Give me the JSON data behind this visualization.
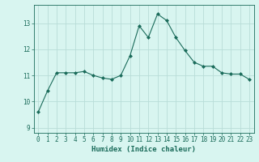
{
  "x": [
    0,
    1,
    2,
    3,
    4,
    5,
    6,
    7,
    8,
    9,
    10,
    11,
    12,
    13,
    14,
    15,
    16,
    17,
    18,
    19,
    20,
    21,
    22,
    23
  ],
  "y": [
    9.6,
    10.4,
    11.1,
    11.1,
    11.1,
    11.15,
    11.0,
    10.9,
    10.85,
    11.0,
    11.75,
    12.9,
    12.45,
    13.35,
    13.1,
    12.45,
    11.95,
    11.5,
    11.35,
    11.35,
    11.1,
    11.05,
    11.05,
    10.85
  ],
  "line_color": "#1a6b5a",
  "marker": "D",
  "marker_size": 2.0,
  "bg_color": "#d8f5f0",
  "grid_color": "#b8ddd8",
  "xlabel": "Humidex (Indice chaleur)",
  "ylabel_ticks": [
    "9",
    "10",
    "11",
    "12",
    "13"
  ],
  "ylim": [
    8.8,
    13.7
  ],
  "xlim": [
    -0.5,
    23.5
  ],
  "yticks": [
    9,
    10,
    11,
    12,
    13
  ],
  "xticks": [
    0,
    1,
    2,
    3,
    4,
    5,
    6,
    7,
    8,
    9,
    10,
    11,
    12,
    13,
    14,
    15,
    16,
    17,
    18,
    19,
    20,
    21,
    22,
    23
  ],
  "xtick_labels": [
    "0",
    "1",
    "2",
    "3",
    "4",
    "5",
    "6",
    "7",
    "8",
    "9",
    "10",
    "11",
    "12",
    "13",
    "14",
    "15",
    "16",
    "17",
    "18",
    "19",
    "20",
    "21",
    "22",
    "23"
  ],
  "tick_color": "#1a6b5a",
  "label_color": "#1a6b5a",
  "xlabel_fontsize": 6.5,
  "tick_fontsize": 5.5
}
